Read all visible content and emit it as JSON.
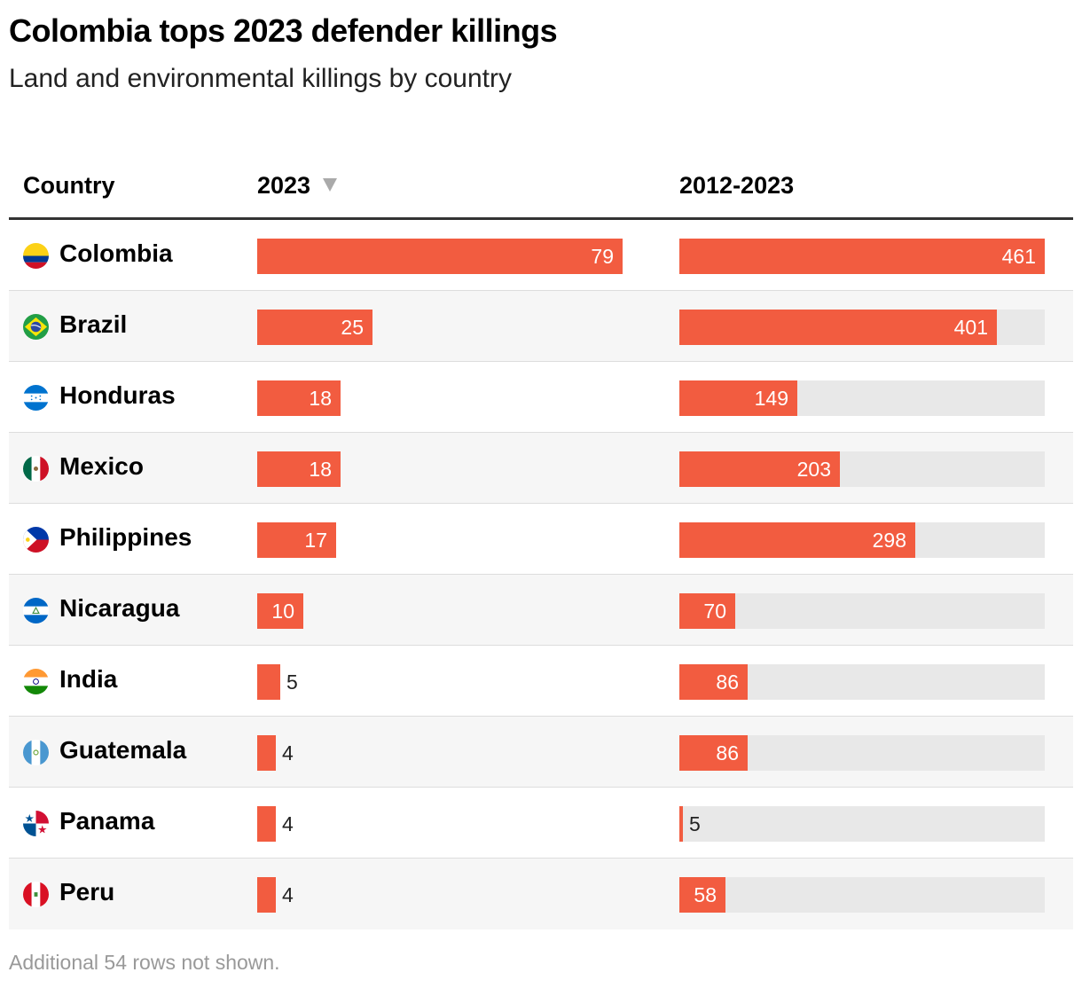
{
  "title": "Colombia tops 2023 defender killings",
  "subtitle": "Land and environmental killings by country",
  "footer": "Additional 54 rows not shown.",
  "colors": {
    "bar": "#f25c40",
    "track": "#e8e8e8",
    "stripe": "#f6f6f6"
  },
  "chart_data": {
    "type": "table",
    "columns": [
      "Country",
      "2023",
      "2012-2023"
    ],
    "sort": {
      "column": "2023",
      "direction": "descending",
      "icon": "sort-down-icon"
    },
    "scales": {
      "2023": [
        0,
        79
      ],
      "2012-2023": [
        0,
        461
      ]
    },
    "rows": [
      {
        "country": "Colombia",
        "flag": "colombia-flag-icon",
        "v2023": 79,
        "v2012_2023": 461
      },
      {
        "country": "Brazil",
        "flag": "brazil-flag-icon",
        "v2023": 25,
        "v2012_2023": 401
      },
      {
        "country": "Honduras",
        "flag": "honduras-flag-icon",
        "v2023": 18,
        "v2012_2023": 149
      },
      {
        "country": "Mexico",
        "flag": "mexico-flag-icon",
        "v2023": 18,
        "v2012_2023": 203
      },
      {
        "country": "Philippines",
        "flag": "philippines-flag-icon",
        "v2023": 17,
        "v2012_2023": 298
      },
      {
        "country": "Nicaragua",
        "flag": "nicaragua-flag-icon",
        "v2023": 10,
        "v2012_2023": 70
      },
      {
        "country": "India",
        "flag": "india-flag-icon",
        "v2023": 5,
        "v2012_2023": 86
      },
      {
        "country": "Guatemala",
        "flag": "guatemala-flag-icon",
        "v2023": 4,
        "v2012_2023": 86
      },
      {
        "country": "Panama",
        "flag": "panama-flag-icon",
        "v2023": 4,
        "v2012_2023": 5
      },
      {
        "country": "Peru",
        "flag": "peru-flag-icon",
        "v2023": 4,
        "v2012_2023": 58
      }
    ]
  }
}
